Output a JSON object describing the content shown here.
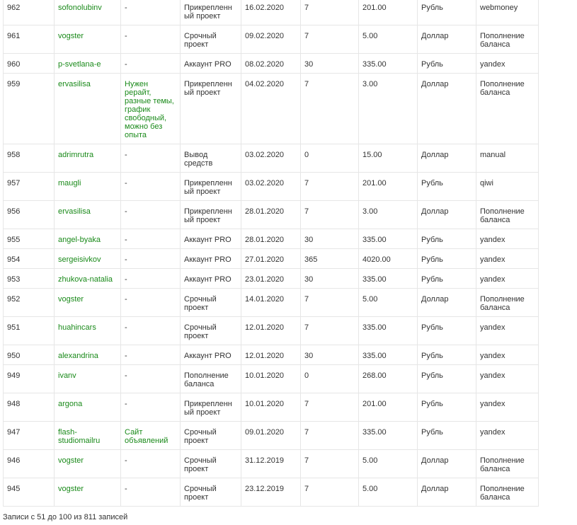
{
  "colors": {
    "link": "#1a8a1a",
    "text": "#333333",
    "border": "#e6e6e6"
  },
  "rows": [
    {
      "id": "962",
      "user": "sofonolubinv",
      "desc": "-",
      "service": "Прикрепленный проект",
      "date": "16.02.2020",
      "days": "7",
      "amount": "201.00",
      "currency": "Рубль",
      "method": "webmoney"
    },
    {
      "id": "961",
      "user": "vogster",
      "desc": "-",
      "service": "Срочный проект",
      "date": "09.02.2020",
      "days": "7",
      "amount": "5.00",
      "currency": "Доллар",
      "method": "Пополнение баланса"
    },
    {
      "id": "960",
      "user": "p-svetlana-e",
      "desc": "-",
      "service": "Аккаунт PRO",
      "date": "08.02.2020",
      "days": "30",
      "amount": "335.00",
      "currency": "Рубль",
      "method": "yandex"
    },
    {
      "id": "959",
      "user": "ervasilisa",
      "desc": "Нужен рерайт, разные темы, график свободный, можно без опыта",
      "service": "Прикрепленный проект",
      "date": "04.02.2020",
      "days": "7",
      "amount": "3.00",
      "currency": "Доллар",
      "method": "Пополнение баланса"
    },
    {
      "id": "958",
      "user": "adrimrutra",
      "desc": "-",
      "service": "Вывод средств",
      "date": "03.02.2020",
      "days": "0",
      "amount": "15.00",
      "currency": "Доллар",
      "method": "manual"
    },
    {
      "id": "957",
      "user": "maugli",
      "desc": "-",
      "service": "Прикрепленный проект",
      "date": "03.02.2020",
      "days": "7",
      "amount": "201.00",
      "currency": "Рубль",
      "method": "qiwi"
    },
    {
      "id": "956",
      "user": "ervasilisa",
      "desc": "-",
      "service": "Прикрепленный проект",
      "date": "28.01.2020",
      "days": "7",
      "amount": "3.00",
      "currency": "Доллар",
      "method": "Пополнение баланса"
    },
    {
      "id": "955",
      "user": "angel-byaka",
      "desc": "-",
      "service": "Аккаунт PRO",
      "date": "28.01.2020",
      "days": "30",
      "amount": "335.00",
      "currency": "Рубль",
      "method": "yandex"
    },
    {
      "id": "954",
      "user": "sergeisivkov",
      "desc": "-",
      "service": "Аккаунт PRO",
      "date": "27.01.2020",
      "days": "365",
      "amount": "4020.00",
      "currency": "Рубль",
      "method": "yandex"
    },
    {
      "id": "953",
      "user": "zhukova-natalia",
      "desc": "-",
      "service": "Аккаунт PRO",
      "date": "23.01.2020",
      "days": "30",
      "amount": "335.00",
      "currency": "Рубль",
      "method": "yandex"
    },
    {
      "id": "952",
      "user": "vogster",
      "desc": "-",
      "service": "Срочный проект",
      "date": "14.01.2020",
      "days": "7",
      "amount": "5.00",
      "currency": "Доллар",
      "method": "Пополнение баланса"
    },
    {
      "id": "951",
      "user": "huahincars",
      "desc": "-",
      "service": "Срочный проект",
      "date": "12.01.2020",
      "days": "7",
      "amount": "335.00",
      "currency": "Рубль",
      "method": "yandex"
    },
    {
      "id": "950",
      "user": "alexandrina",
      "desc": "-",
      "service": "Аккаунт PRO",
      "date": "12.01.2020",
      "days": "30",
      "amount": "335.00",
      "currency": "Рубль",
      "method": "yandex"
    },
    {
      "id": "949",
      "user": "ivanv",
      "desc": "-",
      "service": "Пополнение баланса",
      "date": "10.01.2020",
      "days": "0",
      "amount": "268.00",
      "currency": "Рубль",
      "method": "yandex"
    },
    {
      "id": "948",
      "user": "argona",
      "desc": "-",
      "service": "Прикрепленный проект",
      "date": "10.01.2020",
      "days": "7",
      "amount": "201.00",
      "currency": "Рубль",
      "method": "yandex"
    },
    {
      "id": "947",
      "user": "flash-studiomailru",
      "desc": "Сайт объявлений",
      "service": "Срочный проект",
      "date": "09.01.2020",
      "days": "7",
      "amount": "335.00",
      "currency": "Рубль",
      "method": "yandex"
    },
    {
      "id": "946",
      "user": "vogster",
      "desc": "-",
      "service": "Срочный проект",
      "date": "31.12.2019",
      "days": "7",
      "amount": "5.00",
      "currency": "Доллар",
      "method": "Пополнение баланса"
    },
    {
      "id": "945",
      "user": "vogster",
      "desc": "-",
      "service": "Срочный проект",
      "date": "23.12.2019",
      "days": "7",
      "amount": "5.00",
      "currency": "Доллар",
      "method": "Пополнение баланса"
    }
  ],
  "footer": {
    "info": "Записи с 51 до 100 из 811 записей"
  }
}
